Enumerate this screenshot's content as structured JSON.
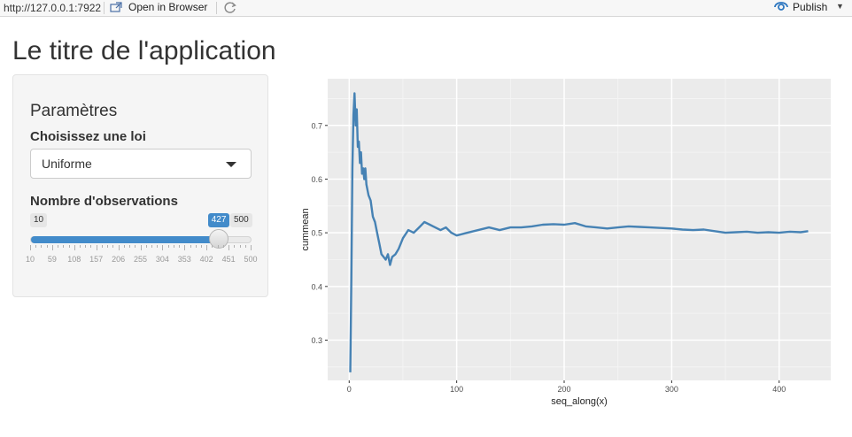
{
  "toolbar": {
    "url": "http://127.0.0.1:7922",
    "open_in_browser": "Open in Browser",
    "publish": "Publish"
  },
  "app": {
    "title": "Le titre de l'application"
  },
  "sidebar": {
    "heading": "Paramètres",
    "distribution_label": "Choisissez une loi",
    "distribution_selected": "Uniforme",
    "observations_label": "Nombre d'observations",
    "slider": {
      "min": 10,
      "max": 500,
      "value": 427,
      "min_label": "10",
      "max_label": "500",
      "value_label": "427",
      "tick_labels": [
        "10",
        "59",
        "108",
        "157",
        "206",
        "255",
        "304",
        "353",
        "402",
        "451",
        "500"
      ]
    }
  },
  "colors": {
    "accent": "#428bca",
    "line": "#4682b4",
    "panel_bg": "#ebebeb"
  },
  "chart_data": {
    "type": "line",
    "title": "",
    "xlabel": "seq_along(x)",
    "ylabel": "cummean",
    "xlim": [
      -20,
      448
    ],
    "ylim": [
      0.225,
      0.787
    ],
    "x_ticks": [
      0,
      100,
      200,
      300,
      400
    ],
    "y_ticks": [
      0.3,
      0.4,
      0.5,
      0.6,
      0.7
    ],
    "grid": true,
    "series": [
      {
        "x": [
          1,
          2,
          3,
          4,
          5,
          6,
          7,
          8,
          9,
          10,
          11,
          12,
          13,
          14,
          15,
          16,
          18,
          20,
          22,
          24,
          26,
          28,
          30,
          32,
          34,
          36,
          38,
          40,
          43,
          46,
          50,
          55,
          60,
          65,
          70,
          75,
          80,
          85,
          90,
          95,
          100,
          110,
          120,
          130,
          140,
          150,
          160,
          170,
          180,
          190,
          200,
          210,
          220,
          230,
          240,
          250,
          260,
          270,
          280,
          290,
          300,
          310,
          320,
          330,
          340,
          350,
          360,
          370,
          380,
          390,
          400,
          410,
          420,
          427
        ],
        "y": [
          0.24,
          0.41,
          0.62,
          0.72,
          0.76,
          0.7,
          0.73,
          0.66,
          0.67,
          0.63,
          0.65,
          0.61,
          0.62,
          0.6,
          0.62,
          0.59,
          0.57,
          0.56,
          0.53,
          0.52,
          0.5,
          0.48,
          0.46,
          0.455,
          0.45,
          0.46,
          0.44,
          0.455,
          0.46,
          0.47,
          0.49,
          0.505,
          0.5,
          0.51,
          0.52,
          0.515,
          0.51,
          0.505,
          0.51,
          0.5,
          0.495,
          0.5,
          0.505,
          0.51,
          0.505,
          0.51,
          0.51,
          0.512,
          0.515,
          0.516,
          0.515,
          0.518,
          0.512,
          0.51,
          0.508,
          0.51,
          0.512,
          0.511,
          0.51,
          0.509,
          0.508,
          0.506,
          0.505,
          0.506,
          0.503,
          0.5,
          0.501,
          0.502,
          0.5,
          0.501,
          0.5,
          0.502,
          0.501,
          0.503
        ]
      }
    ]
  }
}
